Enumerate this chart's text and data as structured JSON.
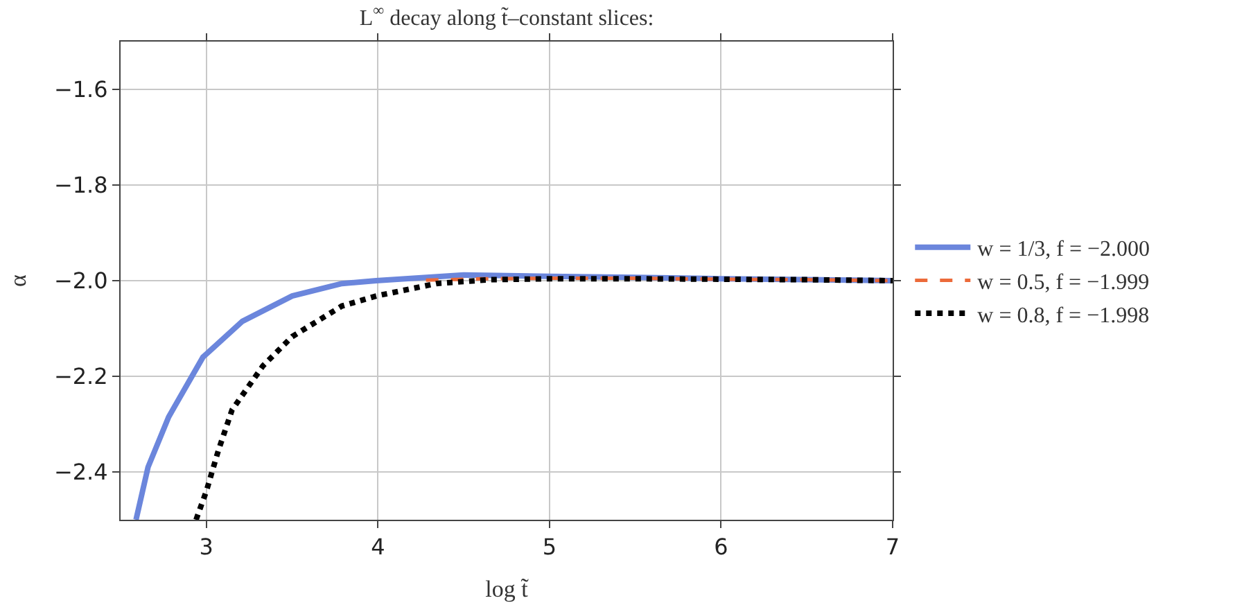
{
  "chart_data": {
    "type": "line",
    "title": "L$^{∞}$ decay along t̃–constant slices:",
    "xlabel": "log t̃",
    "ylabel": "α",
    "xlim": [
      2.5,
      7
    ],
    "xticks": [
      3,
      4,
      5,
      6,
      7
    ],
    "ylim": [
      -2.5,
      -1.5
    ],
    "yticks": [
      -2.4,
      -2.2,
      {
        "value": -2.0,
        "label": "−2.0"
      },
      -1.8,
      -1.6
    ],
    "grid": true,
    "legend": "right",
    "series": [
      {
        "name": "w = 1/3, f = −2.000",
        "color": "#6b86dc",
        "line_style": "solid",
        "x": [
          2.59,
          2.66,
          2.78,
          2.98,
          3.21,
          3.5,
          3.79,
          3.99,
          4.5,
          5.0,
          5.5,
          6.0,
          6.5,
          7.0
        ],
        "values": [
          -2.5,
          -2.39,
          -2.285,
          -2.16,
          -2.085,
          -2.032,
          -2.006,
          -2.0,
          -1.988,
          -1.991,
          -1.993,
          -1.996,
          -1.998,
          -2.0
        ]
      },
      {
        "name": "w = 0.5, f = −1.999",
        "color": "#ec6a3a",
        "line_style": "dashed",
        "x": [
          4.28,
          4.6,
          5.0,
          5.5,
          6.0,
          6.5,
          7.0
        ],
        "values": [
          -1.999,
          -1.996,
          -1.995,
          -1.995,
          -1.997,
          -1.998,
          -2.0
        ]
      },
      {
        "name": "w = 0.8, f = −1.998",
        "color": "#000000",
        "line_style": "dotted",
        "x": [
          2.94,
          3.0,
          3.07,
          3.15,
          3.33,
          3.5,
          3.79,
          3.99,
          4.34,
          4.65,
          5.0,
          5.5,
          6.0,
          6.5,
          7.0
        ],
        "values": [
          -2.5,
          -2.44,
          -2.355,
          -2.27,
          -2.178,
          -2.117,
          -2.053,
          -2.032,
          -2.006,
          -1.998,
          -1.996,
          -1.996,
          -1.997,
          -1.998,
          -2.0
        ]
      }
    ]
  }
}
